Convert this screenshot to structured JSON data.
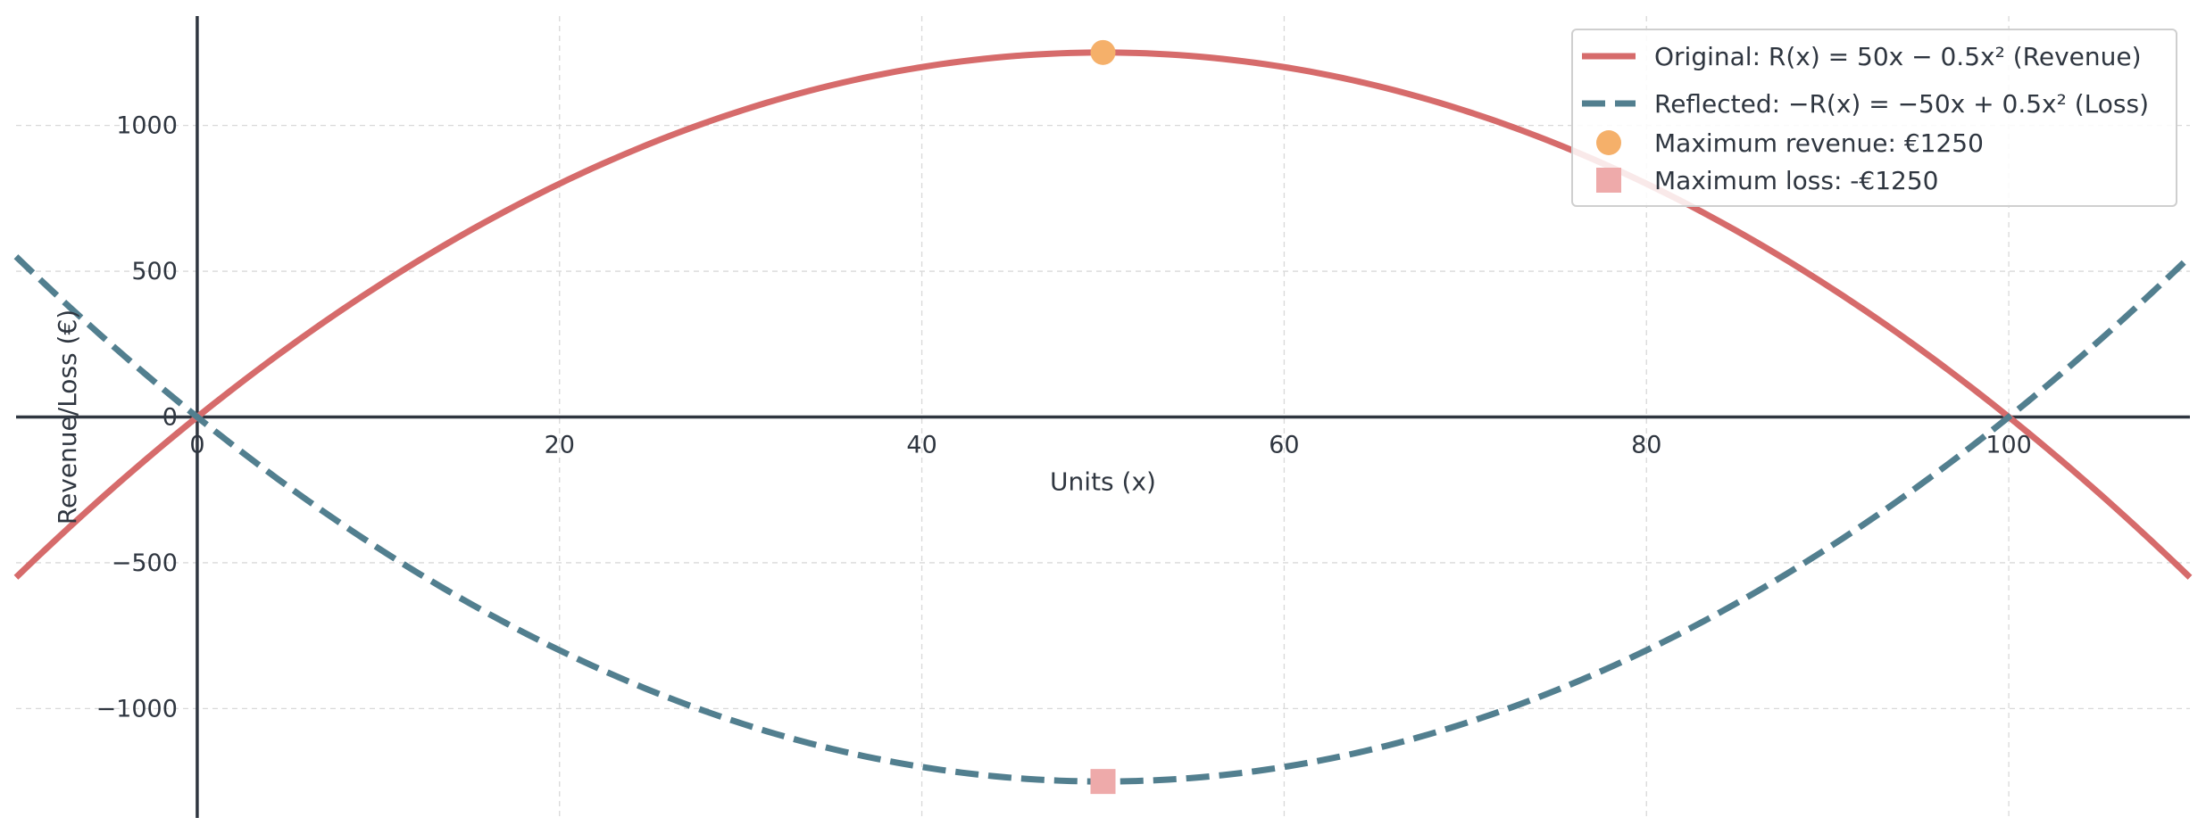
{
  "chart_data": {
    "type": "line",
    "title": "",
    "xlabel": "Units (x)",
    "ylabel": "Revenue/Loss (€)",
    "xlim": [
      -10,
      110
    ],
    "ylim": [
      -1375,
      1375
    ],
    "x_ticks": [
      0,
      20,
      40,
      60,
      80,
      100
    ],
    "x_tick_labels": [
      "0",
      "20",
      "40",
      "60",
      "80",
      "100"
    ],
    "y_ticks": [
      -1000,
      -500,
      0,
      500,
      1000
    ],
    "y_tick_labels": [
      "−1000",
      "−500",
      "0",
      "500",
      "1000"
    ],
    "grid": true,
    "legend_position": "top-right",
    "series": [
      {
        "name": "Original: R(x) = 50x − 0.5x² (Revenue)",
        "kind": "line",
        "style": "solid",
        "color": "#d66b6b",
        "formula": "50x - 0.5x^2",
        "x": [
          -10,
          -5,
          0,
          5,
          10,
          15,
          20,
          25,
          30,
          35,
          40,
          45,
          50,
          55,
          60,
          65,
          70,
          75,
          80,
          85,
          90,
          95,
          100,
          105,
          110
        ],
        "y": [
          -550,
          -262.5,
          0,
          237.5,
          450,
          637.5,
          800,
          937.5,
          1050,
          1137.5,
          1200,
          1237.5,
          1250,
          1237.5,
          1200,
          1137.5,
          1050,
          937.5,
          800,
          637.5,
          450,
          237.5,
          0,
          -262.5,
          -550
        ]
      },
      {
        "name": "Reflected: −R(x) = −50x + 0.5x² (Loss)",
        "kind": "line",
        "style": "dashed",
        "color": "#527f8f",
        "formula": "-50x + 0.5x^2",
        "x": [
          -10,
          -5,
          0,
          5,
          10,
          15,
          20,
          25,
          30,
          35,
          40,
          45,
          50,
          55,
          60,
          65,
          70,
          75,
          80,
          85,
          90,
          95,
          100,
          105,
          110
        ],
        "y": [
          550,
          262.5,
          0,
          -237.5,
          -450,
          -637.5,
          -800,
          -937.5,
          -1050,
          -1137.5,
          -1200,
          -1237.5,
          -1250,
          -1237.5,
          -1200,
          -1137.5,
          -1050,
          -937.5,
          -800,
          -637.5,
          -450,
          -237.5,
          0,
          262.5,
          550
        ]
      },
      {
        "name": "Maximum revenue: €1250",
        "kind": "marker",
        "marker": "circle",
        "color": "#f5b06a",
        "x": [
          50
        ],
        "y": [
          1250
        ]
      },
      {
        "name": "Maximum loss: -€1250",
        "kind": "marker",
        "marker": "square",
        "color": "#eeaaaa",
        "x": [
          50
        ],
        "y": [
          -1250
        ]
      }
    ]
  }
}
